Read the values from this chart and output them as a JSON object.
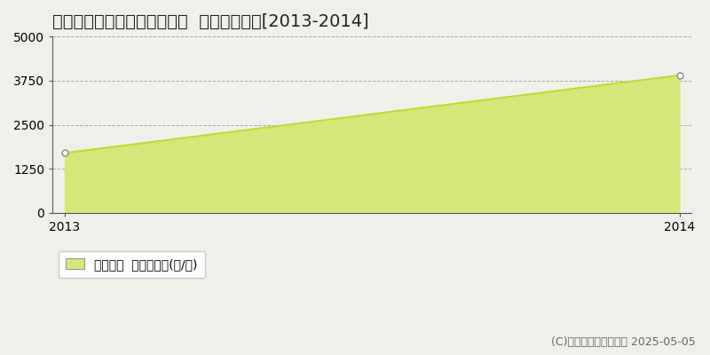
{
  "title": "多可郡多可町八千代区下野間  農地価格推移[2013-2014]",
  "x_values": [
    2013,
    2014
  ],
  "y_values": [
    1700,
    3900
  ],
  "y_min": 0,
  "y_max": 5000,
  "y_ticks": [
    0,
    1250,
    2500,
    3750,
    5000
  ],
  "x_ticks": [
    2013,
    2014
  ],
  "line_color": "#c8d832",
  "fill_color": "#d4e87a",
  "fill_alpha": 1.0,
  "marker_color": "#ffffff",
  "marker_edge_color": "#888888",
  "grid_color": "#aaaaaa",
  "background_color": "#f0f0eb",
  "legend_label": "農地価格  平均坪単価(円/坪)",
  "copyright_text": "(C)土地価格ドットコム 2025-05-05",
  "title_fontsize": 14,
  "tick_fontsize": 10,
  "legend_fontsize": 10,
  "copyright_fontsize": 9,
  "spine_color": "#555555"
}
